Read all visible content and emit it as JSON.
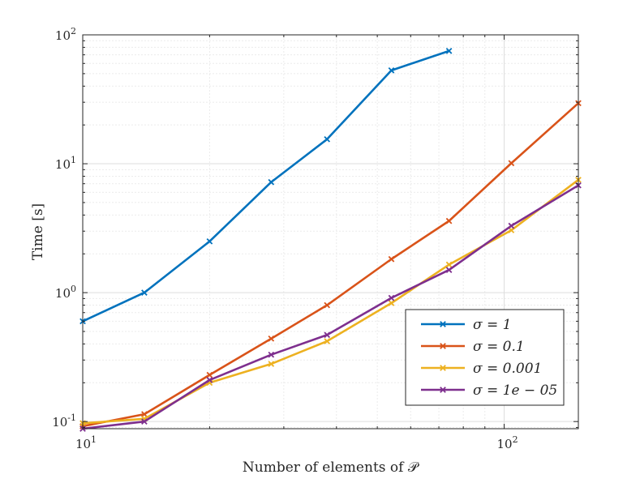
{
  "chart_data": {
    "type": "line",
    "title": "",
    "xlabel": "Number of elements of 𝒫",
    "ylabel": "Time [s]",
    "xscale": "log",
    "yscale": "log",
    "xlim": [
      10,
      150
    ],
    "ylim": [
      0.088,
      100
    ],
    "grid": true,
    "legend_location": "bottom-right",
    "x_ticks": [
      {
        "value": 10,
        "base": "10",
        "exp": "1"
      },
      {
        "value": 100,
        "base": "10",
        "exp": "2"
      }
    ],
    "y_ticks": [
      {
        "value": 0.1,
        "base": "10",
        "exp": "-1"
      },
      {
        "value": 1,
        "base": "10",
        "exp": "0"
      },
      {
        "value": 10,
        "base": "10",
        "exp": "1"
      },
      {
        "value": 100,
        "base": "10",
        "exp": "2"
      }
    ],
    "series": [
      {
        "name": "σ = 1",
        "color": "#0072BD",
        "x": [
          10,
          14,
          20,
          28,
          38,
          54,
          74
        ],
        "y": [
          0.6,
          1.0,
          2.5,
          7.2,
          15.5,
          53,
          75
        ]
      },
      {
        "name": "σ = 0.1",
        "color": "#D95319",
        "x": [
          10,
          14,
          20,
          28,
          38,
          54,
          74,
          104,
          150
        ],
        "y": [
          0.092,
          0.114,
          0.23,
          0.44,
          0.8,
          1.82,
          3.6,
          10.1,
          29.5
        ]
      },
      {
        "name": "σ = 0.001",
        "color": "#EDB120",
        "x": [
          10,
          14,
          20,
          28,
          38,
          54,
          74,
          104,
          150
        ],
        "y": [
          0.097,
          0.105,
          0.2,
          0.28,
          0.42,
          0.83,
          1.65,
          3.05,
          7.5
        ]
      },
      {
        "name": "σ = 1e − 05",
        "color": "#7E2F8E",
        "x": [
          10,
          14,
          20,
          28,
          38,
          54,
          74,
          104,
          150
        ],
        "y": [
          0.088,
          0.1,
          0.21,
          0.33,
          0.47,
          0.91,
          1.5,
          3.3,
          6.8
        ]
      }
    ]
  }
}
